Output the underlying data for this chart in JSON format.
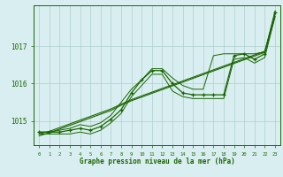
{
  "x": [
    0,
    1,
    2,
    3,
    4,
    5,
    6,
    7,
    8,
    9,
    10,
    11,
    12,
    13,
    14,
    15,
    16,
    17,
    18,
    19,
    20,
    21,
    22,
    23
  ],
  "y_main": [
    1014.7,
    1014.7,
    1014.7,
    1014.75,
    1014.8,
    1014.75,
    1014.85,
    1015.05,
    1015.3,
    1015.75,
    1016.1,
    1016.35,
    1016.35,
    1016.0,
    1015.75,
    1015.7,
    1015.7,
    1015.7,
    1015.7,
    1016.75,
    1016.8,
    1016.65,
    1016.8,
    1017.9
  ],
  "y_upper": [
    1014.7,
    1014.7,
    1014.75,
    1014.8,
    1014.9,
    1014.85,
    1014.95,
    1015.15,
    1015.5,
    1015.85,
    1016.1,
    1016.4,
    1016.4,
    1016.15,
    1015.95,
    1015.85,
    1015.85,
    1016.75,
    1016.8,
    1016.8,
    1016.8,
    1016.8,
    1016.85,
    1017.95
  ],
  "y_lower": [
    1014.65,
    1014.65,
    1014.65,
    1014.65,
    1014.7,
    1014.65,
    1014.75,
    1014.95,
    1015.2,
    1015.65,
    1015.95,
    1016.25,
    1016.25,
    1015.8,
    1015.65,
    1015.6,
    1015.6,
    1015.6,
    1015.6,
    1016.65,
    1016.7,
    1016.55,
    1016.7,
    1017.8
  ],
  "y_trend1": [
    1014.65,
    1014.72,
    1014.82,
    1014.92,
    1015.02,
    1015.12,
    1015.22,
    1015.32,
    1015.45,
    1015.57,
    1015.67,
    1015.77,
    1015.87,
    1015.97,
    1016.07,
    1016.17,
    1016.27,
    1016.37,
    1016.47,
    1016.57,
    1016.67,
    1016.77,
    1016.87,
    1017.85
  ],
  "y_trend2": [
    1014.6,
    1014.68,
    1014.78,
    1014.88,
    1014.98,
    1015.08,
    1015.18,
    1015.28,
    1015.42,
    1015.54,
    1015.64,
    1015.74,
    1015.84,
    1015.94,
    1016.04,
    1016.14,
    1016.24,
    1016.34,
    1016.44,
    1016.54,
    1016.64,
    1016.74,
    1016.84,
    1017.8
  ],
  "bg_color": "#d8eef0",
  "grid_color": "#b0cdd0",
  "line_color": "#1a6600",
  "marker_color": "#1a6600",
  "xlabel": "Graphe pression niveau de la mer (hPa)",
  "ylabel_ticks": [
    1015,
    1016,
    1017
  ],
  "xlim": [
    -0.5,
    23.5
  ],
  "ylim": [
    1014.35,
    1018.1
  ],
  "xticks": [
    0,
    1,
    2,
    3,
    4,
    5,
    6,
    7,
    8,
    9,
    10,
    11,
    12,
    13,
    14,
    15,
    16,
    17,
    18,
    19,
    20,
    21,
    22,
    23
  ]
}
